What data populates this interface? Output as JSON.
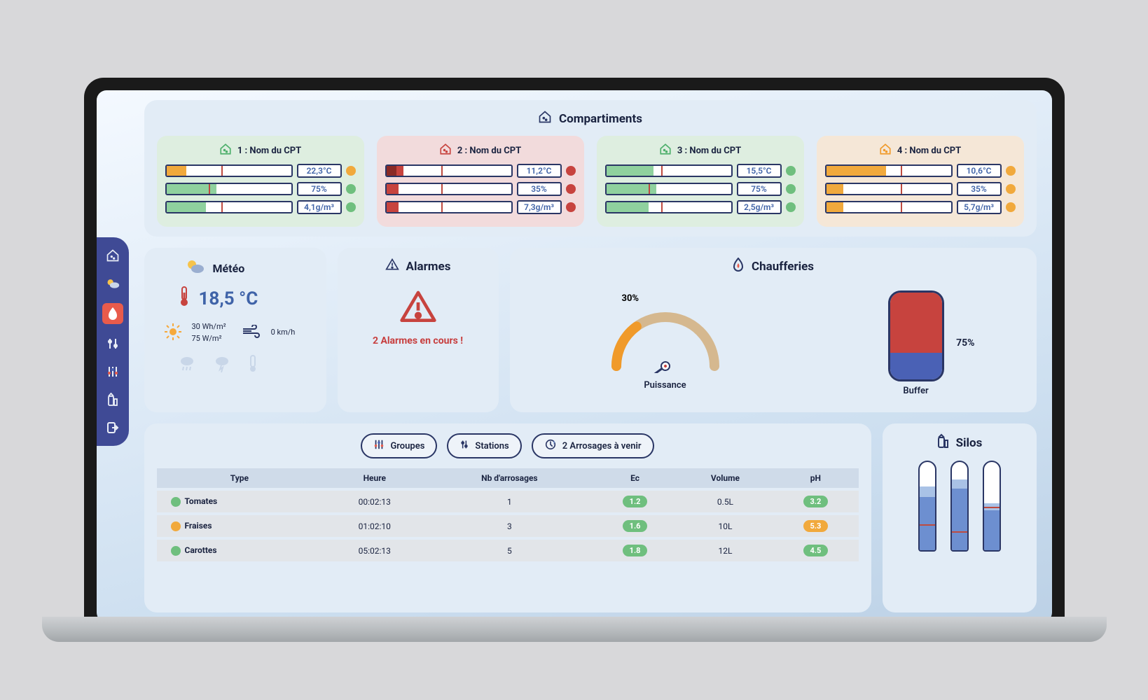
{
  "colors": {
    "navy": "#2a3665",
    "blue_text": "#3f63a8",
    "green": "#6fbf7e",
    "green_dark": "#4caf6a",
    "orange": "#f1a93c",
    "orange_dark": "#f09a2a",
    "red": "#c7433e",
    "red_dark": "#b5362f",
    "badge_green": "#6fbf7e",
    "badge_orange": "#f1a93c"
  },
  "sidebar": {
    "items": [
      {
        "name": "compartments",
        "active": false
      },
      {
        "name": "weather",
        "active": false
      },
      {
        "name": "heating",
        "active": true
      },
      {
        "name": "stations",
        "active": false
      },
      {
        "name": "groups",
        "active": false
      },
      {
        "name": "silos",
        "active": false
      },
      {
        "name": "logout",
        "active": false
      }
    ]
  },
  "compartments": {
    "title": "Compartiments",
    "items": [
      {
        "num": "1",
        "name": "Nom du CPT",
        "theme": "green",
        "icon": "#4caf6a",
        "metrics": [
          {
            "value": "22,3°C",
            "dot": "#f1a93c",
            "fill": "#f1a93c",
            "fill_pct": 16,
            "tick_pct": 44
          },
          {
            "value": "75%",
            "dot": "#6fbf7e",
            "fill": "#8fd19e",
            "fill_pct": 40,
            "tick_pct": 34
          },
          {
            "value": "4,1g/m³",
            "dot": "#6fbf7e",
            "fill": "#8fd19e",
            "fill_pct": 32,
            "tick_pct": 44
          }
        ]
      },
      {
        "num": "2",
        "name": "Nom du CPT",
        "theme": "red",
        "icon": "#c7433e",
        "metrics": [
          {
            "value": "11,2°C",
            "dot": "#c7433e",
            "fill": "#c7433e",
            "fill_pct": 14,
            "accent": "#8a2a26",
            "accent_pct": 8,
            "tick_pct": 44
          },
          {
            "value": "35%",
            "dot": "#c7433e",
            "fill": "#c7433e",
            "fill_pct": 10,
            "tick_pct": 44
          },
          {
            "value": "7,3g/m³",
            "dot": "#c7433e",
            "fill": "#c7433e",
            "fill_pct": 10,
            "tick_pct": 44
          }
        ]
      },
      {
        "num": "3",
        "name": "Nom du CPT",
        "theme": "green",
        "icon": "#4caf6a",
        "metrics": [
          {
            "value": "15,5°C",
            "dot": "#6fbf7e",
            "fill": "#8fd19e",
            "fill_pct": 38,
            "tick_pct": 44
          },
          {
            "value": "75%",
            "dot": "#6fbf7e",
            "fill": "#8fd19e",
            "fill_pct": 40,
            "tick_pct": 34
          },
          {
            "value": "2,5g/m³",
            "dot": "#6fbf7e",
            "fill": "#8fd19e",
            "fill_pct": 34,
            "tick_pct": 44
          }
        ]
      },
      {
        "num": "4",
        "name": "Nom du CPT",
        "theme": "orange",
        "icon": "#f09a2a",
        "metrics": [
          {
            "value": "10,6°C",
            "dot": "#f1a93c",
            "fill": "#f1a93c",
            "fill_pct": 48,
            "tick_pct": 60
          },
          {
            "value": "35%",
            "dot": "#f1a93c",
            "fill": "#f1a93c",
            "fill_pct": 14,
            "tick_pct": 60
          },
          {
            "value": "5,7g/m³",
            "dot": "#f1a93c",
            "fill": "#f1a93c",
            "fill_pct": 14,
            "tick_pct": 60
          }
        ]
      }
    ]
  },
  "meteo": {
    "title": "Météo",
    "temp": "18,5 °C",
    "radiation": "30 Wh/m²",
    "irradiance": "75 W/m²",
    "wind": "0 km/h"
  },
  "alarmes": {
    "title": "Alarmes",
    "message": "2 Alarmes en cours !"
  },
  "chaufferies": {
    "title": "Chaufferies",
    "puissance_label": "Puissance",
    "puissance_pct": "30%",
    "puissance_value": 30,
    "buffer_label": "Buffer",
    "buffer_pct": "75%",
    "buffer_top_pct": 70,
    "buffer_bot_pct": 30
  },
  "irrigation": {
    "pills": [
      {
        "label": "Groupes",
        "icon": "groups"
      },
      {
        "label": "Stations",
        "icon": "stations"
      },
      {
        "label": "2 Arrosages à venir",
        "icon": "watering"
      }
    ],
    "columns": [
      "Type",
      "Heure",
      "Nb d'arrosages",
      "Ec",
      "Volume",
      "pH"
    ],
    "rows": [
      {
        "dot": "#6fbf7e",
        "type": "Tomates",
        "heure": "00:02:13",
        "nb": "1",
        "ec": "1.2",
        "ec_color": "#6fbf7e",
        "vol": "0.5L",
        "ph": "3.2",
        "ph_color": "#6fbf7e"
      },
      {
        "dot": "#f1a93c",
        "type": "Fraises",
        "heure": "01:02:10",
        "nb": "3",
        "ec": "1.6",
        "ec_color": "#6fbf7e",
        "vol": "10L",
        "ph": "5.3",
        "ph_color": "#f1a93c"
      },
      {
        "dot": "#6fbf7e",
        "type": "Carottes",
        "heure": "05:02:13",
        "nb": "5",
        "ec": "1.8",
        "ec_color": "#6fbf7e",
        "vol": "12L",
        "ph": "4.5",
        "ph_color": "#6fbf7e"
      }
    ]
  },
  "silos": {
    "title": "Silos",
    "items": [
      {
        "blue_pct": 60,
        "light_pct": 12,
        "tick_pct": 28
      },
      {
        "blue_pct": 70,
        "light_pct": 10,
        "tick_pct": 20
      },
      {
        "blue_pct": 45,
        "light_pct": 8,
        "tick_pct": 48
      }
    ]
  }
}
